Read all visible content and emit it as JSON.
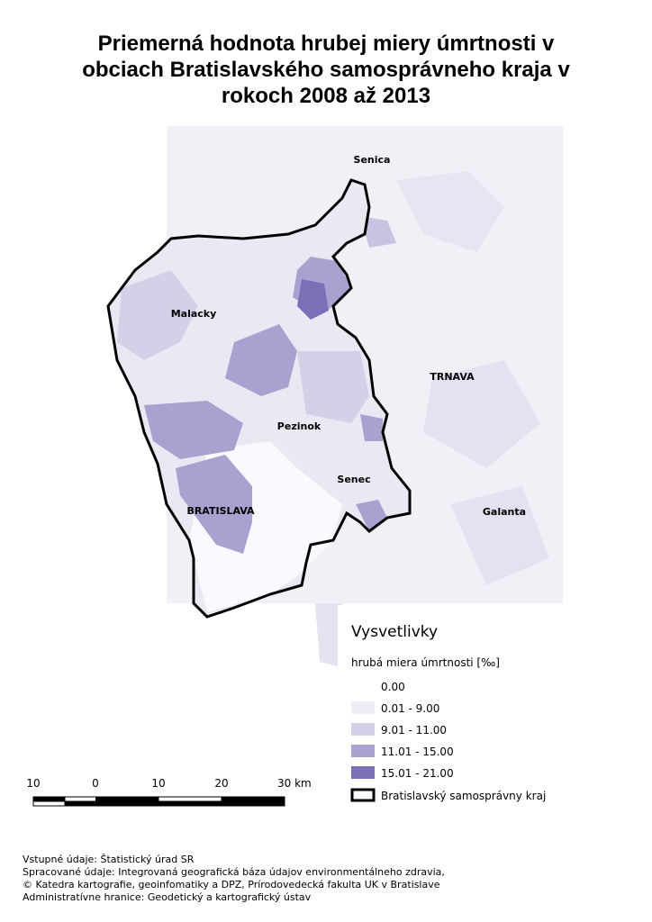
{
  "header": {
    "title_lines": [
      "Priemerná hodnota hrubej miery úmrtnosti v",
      "obciach Bratislavského samosprávneho kraja v",
      "rokoch 2008 až 2013"
    ]
  },
  "places": [
    {
      "label": "Senica"
    },
    {
      "label": "Malacky"
    },
    {
      "label": "TRNAVA"
    },
    {
      "label": "Pezinok"
    },
    {
      "label": "Senec"
    },
    {
      "label": "BRATISLAVA"
    },
    {
      "label": "Galanta"
    }
  ],
  "legend": {
    "title": "Vysvetlivky",
    "subtitle": "hrubá miera úmrtnosti [‰]",
    "items": [
      {
        "label": "0.00",
        "color": "#ffffff"
      },
      {
        "label": "0.01 - 9.00",
        "color": "#efedf5"
      },
      {
        "label": "9.01 - 11.00",
        "color": "#d4d0e8"
      },
      {
        "label": "11.01 - 15.00",
        "color": "#a9a2d1"
      },
      {
        "label": "15.01 - 21.00",
        "color": "#7b6fb8"
      }
    ],
    "boundary": "Bratislavský samosprávny kraj"
  },
  "scale": {
    "labels": [
      "10",
      "0",
      "10",
      "20",
      "30 km"
    ]
  },
  "footer": {
    "lines": [
      "Vstupné údaje: Štatistický úrad SR",
      "Spracované údaje: Integrovaná geografická báza údajov environmentálneho zdravia,",
      "© Katedra kartografie, geoinfomatiky a DPZ, Prírodovedecká fakulta UK v Bratislave",
      "Administratívne hranice: Geodetický a kartografický ústav"
    ]
  }
}
